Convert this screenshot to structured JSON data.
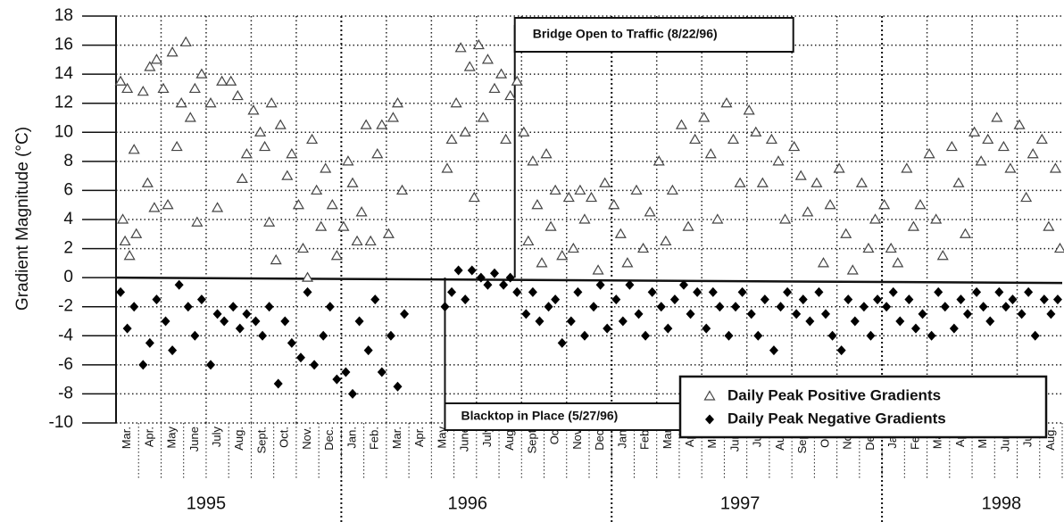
{
  "chart_data": {
    "type": "scatter",
    "y_label": "Gradient Magnitude (°C)",
    "ylim": [
      -10,
      18
    ],
    "yticks": [
      -10,
      -8,
      -6,
      -4,
      -2,
      0,
      2,
      4,
      6,
      8,
      10,
      12,
      14,
      16,
      18
    ],
    "xlim": [
      0,
      42
    ],
    "xticks": [
      {
        "value": 0.5,
        "label": "Mar."
      },
      {
        "value": 1.5,
        "label": "Apr."
      },
      {
        "value": 2.5,
        "label": "May"
      },
      {
        "value": 3.5,
        "label": "June"
      },
      {
        "value": 4.5,
        "label": "July"
      },
      {
        "value": 5.5,
        "label": "Aug."
      },
      {
        "value": 6.5,
        "label": "Sept."
      },
      {
        "value": 7.5,
        "label": "Oct."
      },
      {
        "value": 8.5,
        "label": "Nov."
      },
      {
        "value": 9.5,
        "label": "Dec."
      },
      {
        "value": 10.5,
        "label": "Jan."
      },
      {
        "value": 11.5,
        "label": "Feb."
      },
      {
        "value": 12.5,
        "label": "Mar."
      },
      {
        "value": 13.5,
        "label": "Apr."
      },
      {
        "value": 14.5,
        "label": "May"
      },
      {
        "value": 15.5,
        "label": "June"
      },
      {
        "value": 16.5,
        "label": "July"
      },
      {
        "value": 17.5,
        "label": "Aug."
      },
      {
        "value": 18.5,
        "label": "Sept."
      },
      {
        "value": 19.5,
        "label": "Oct"
      },
      {
        "value": 20.5,
        "label": "Nov."
      },
      {
        "value": 21.5,
        "label": "Dec."
      },
      {
        "value": 22.5,
        "label": "Jan."
      },
      {
        "value": 23.5,
        "label": "Feb."
      },
      {
        "value": 24.5,
        "label": "Mar."
      },
      {
        "value": 25.5,
        "label": "Apr."
      },
      {
        "value": 26.5,
        "label": "May"
      },
      {
        "value": 27.5,
        "label": "June"
      },
      {
        "value": 28.5,
        "label": "July"
      },
      {
        "value": 29.5,
        "label": "Aug."
      },
      {
        "value": 30.5,
        "label": "Sept."
      },
      {
        "value": 31.5,
        "label": "Oct."
      },
      {
        "value": 32.5,
        "label": "Nov."
      },
      {
        "value": 33.5,
        "label": "Dec."
      },
      {
        "value": 34.5,
        "label": "Jan."
      },
      {
        "value": 35.5,
        "label": "Feb."
      },
      {
        "value": 36.5,
        "label": "Mar."
      },
      {
        "value": 37.5,
        "label": "Apr."
      },
      {
        "value": 38.5,
        "label": "May"
      },
      {
        "value": 39.5,
        "label": "June"
      },
      {
        "value": 40.5,
        "label": "July"
      },
      {
        "value": 41.5,
        "label": "Aug."
      }
    ],
    "years": [
      {
        "value": 4,
        "label": "1995"
      },
      {
        "value": 15.6,
        "label": "1996"
      },
      {
        "value": 27.7,
        "label": "1997"
      },
      {
        "value": 39.3,
        "label": "1998"
      }
    ],
    "year_dividers": [
      10,
      22,
      34
    ],
    "xgrid": [
      2,
      4,
      6,
      8,
      12,
      14,
      16,
      18,
      20,
      24,
      26,
      28,
      30,
      32,
      36,
      38,
      40
    ],
    "grid": true,
    "annotations": [
      {
        "text": "Bridge Open to Traffic (8/22/96)",
        "x": 17.7
      },
      {
        "text": "Blacktop in Place (5/27/96)",
        "x": 14.6
      }
    ],
    "legend": "lower right",
    "series": [
      {
        "name": "Daily Peak Positive Gradients",
        "marker": "triangle",
        "color": "#444444",
        "x": [
          0.2,
          0.3,
          0.4,
          0.5,
          0.6,
          0.8,
          0.9,
          1.2,
          1.4,
          1.5,
          1.7,
          1.8,
          2.1,
          2.3,
          2.5,
          2.7,
          2.9,
          3.1,
          3.3,
          3.5,
          3.6,
          3.8,
          4.2,
          4.5,
          4.7,
          5.1,
          5.4,
          5.6,
          5.8,
          6.1,
          6.4,
          6.6,
          6.8,
          6.9,
          7.1,
          7.3,
          7.6,
          7.8,
          8.1,
          8.3,
          8.5,
          8.7,
          8.9,
          9.1,
          9.3,
          9.6,
          9.8,
          10.1,
          10.3,
          10.5,
          10.7,
          10.9,
          11.1,
          11.3,
          11.6,
          11.8,
          12.1,
          12.3,
          12.5,
          12.7,
          14.7,
          14.9,
          15.1,
          15.3,
          15.5,
          15.7,
          15.9,
          16.1,
          16.3,
          16.5,
          16.8,
          17.1,
          17.3,
          17.5,
          17.8,
          18.1,
          18.3,
          18.5,
          18.7,
          18.9,
          19.1,
          19.3,
          19.5,
          19.8,
          20.1,
          20.3,
          20.6,
          20.8,
          21.1,
          21.4,
          21.7,
          22.1,
          22.4,
          22.7,
          23.1,
          23.4,
          23.7,
          24.1,
          24.4,
          24.7,
          25.1,
          25.4,
          25.7,
          26.1,
          26.4,
          26.7,
          27.1,
          27.4,
          27.7,
          28.1,
          28.4,
          28.7,
          29.1,
          29.4,
          29.7,
          30.1,
          30.4,
          30.7,
          31.1,
          31.4,
          31.7,
          32.1,
          32.4,
          32.7,
          33.1,
          33.4,
          33.7,
          34.1,
          34.4,
          34.7,
          35.1,
          35.4,
          35.7,
          36.1,
          36.4,
          36.7,
          37.1,
          37.4,
          37.7,
          38.1,
          38.4,
          38.7,
          39.1,
          39.4,
          39.7,
          40.1,
          40.4,
          40.7,
          41.1,
          41.4,
          41.7,
          41.9
        ],
        "values": [
          13.5,
          4,
          2.5,
          13,
          1.5,
          8.8,
          3,
          12.8,
          6.5,
          14.5,
          4.8,
          15,
          13,
          5,
          15.5,
          9,
          12,
          16.2,
          11,
          13,
          3.8,
          14,
          12,
          4.8,
          13.5,
          13.5,
          12.5,
          6.8,
          8.5,
          11.5,
          10,
          9,
          3.8,
          12,
          1.2,
          10.5,
          7,
          8.5,
          5,
          2,
          0,
          9.5,
          6,
          3.5,
          7.5,
          5,
          1.5,
          3.5,
          8,
          6.5,
          2.5,
          4.5,
          10.5,
          2.5,
          8.5,
          10.5,
          3,
          11,
          12,
          6,
          7.5,
          9.5,
          12,
          15.8,
          10,
          14.5,
          5.5,
          16,
          11,
          15,
          13,
          14,
          9.5,
          12.5,
          13.5,
          10,
          2.5,
          8,
          5,
          1,
          8.5,
          3.5,
          6,
          1.5,
          5.5,
          2,
          6,
          4,
          5.5,
          0.5,
          6.5,
          5,
          3,
          1,
          6,
          2,
          4.5,
          8,
          2.5,
          6,
          10.5,
          3.5,
          9.5,
          11,
          8.5,
          4,
          12,
          9.5,
          6.5,
          11.5,
          10,
          6.5,
          9.5,
          8,
          4,
          9,
          7,
          4.5,
          6.5,
          1,
          5,
          7.5,
          3,
          0.5,
          6.5,
          2,
          4,
          5,
          2,
          1,
          7.5,
          3.5,
          5,
          8.5,
          4,
          1.5,
          9,
          6.5,
          3,
          10,
          8,
          9.5,
          11,
          9,
          7.5,
          10.5,
          5.5,
          8.5,
          9.5,
          3.5,
          7.5,
          2
        ]
      },
      {
        "name": "Daily Peak Negative Gradients",
        "marker": "diamond",
        "color": "#000000",
        "x": [
          0.2,
          0.5,
          0.8,
          1.2,
          1.5,
          1.8,
          2.2,
          2.5,
          2.8,
          3.2,
          3.5,
          3.8,
          4.2,
          4.5,
          4.8,
          5.2,
          5.5,
          5.8,
          6.2,
          6.5,
          6.8,
          7.2,
          7.5,
          7.8,
          8.2,
          8.5,
          8.8,
          9.2,
          9.5,
          9.8,
          10.2,
          10.5,
          10.8,
          11.2,
          11.5,
          11.8,
          12.2,
          12.5,
          12.8,
          14.6,
          14.9,
          15.2,
          15.5,
          15.8,
          16.2,
          16.5,
          16.8,
          17.2,
          17.5,
          17.8,
          18.2,
          18.5,
          18.8,
          19.2,
          19.5,
          19.8,
          20.2,
          20.5,
          20.8,
          21.2,
          21.5,
          21.8,
          22.2,
          22.5,
          22.8,
          23.2,
          23.5,
          23.8,
          24.2,
          24.5,
          24.8,
          25.2,
          25.5,
          25.8,
          26.2,
          26.5,
          26.8,
          27.2,
          27.5,
          27.8,
          28.2,
          28.5,
          28.8,
          29.2,
          29.5,
          29.8,
          30.2,
          30.5,
          30.8,
          31.2,
          31.5,
          31.8,
          32.2,
          32.5,
          32.8,
          33.2,
          33.5,
          33.8,
          34.2,
          34.5,
          34.8,
          35.2,
          35.5,
          35.8,
          36.2,
          36.5,
          36.8,
          37.2,
          37.5,
          37.8,
          38.2,
          38.5,
          38.8,
          39.2,
          39.5,
          39.8,
          40.2,
          40.5,
          40.8,
          41.2,
          41.5,
          41.8
        ],
        "values": [
          -1,
          -3.5,
          -2,
          -6,
          -4.5,
          -1.5,
          -3,
          -5,
          -0.5,
          -2,
          -4,
          -1.5,
          -6,
          -2.5,
          -3,
          -2,
          -3.5,
          -2.5,
          -3,
          -4,
          -2,
          -7.3,
          -3,
          -4.5,
          -5.5,
          -1,
          -6,
          -4,
          -2,
          -7,
          -6.5,
          -8,
          -3,
          -5,
          -1.5,
          -6.5,
          -4,
          -7.5,
          -2.5,
          -2,
          -1,
          0.5,
          -1.5,
          0.5,
          0,
          -0.5,
          0.3,
          -0.5,
          0,
          -1,
          -2.5,
          -1,
          -3,
          -2,
          -1.5,
          -4.5,
          -3,
          -1,
          -4,
          -2,
          -0.5,
          -3.5,
          -1.5,
          -3,
          -0.5,
          -2.5,
          -4,
          -1,
          -2,
          -3.5,
          -1.5,
          -0.5,
          -2.5,
          -1,
          -3.5,
          -1,
          -2,
          -4,
          -2,
          -1,
          -2.5,
          -4,
          -1.5,
          -5,
          -2,
          -1,
          -2.5,
          -1.5,
          -3,
          -1,
          -2.5,
          -4,
          -5,
          -1.5,
          -3,
          -2,
          -4,
          -1.5,
          -2,
          -1,
          -3,
          -1.5,
          -3.5,
          -2.5,
          -4,
          -1,
          -2,
          -3.5,
          -1.5,
          -2.5,
          -1,
          -2,
          -3,
          -1,
          -2,
          -1.5,
          -2.5,
          -1,
          -4,
          -1.5,
          -2.5,
          -1.5
        ]
      }
    ]
  }
}
